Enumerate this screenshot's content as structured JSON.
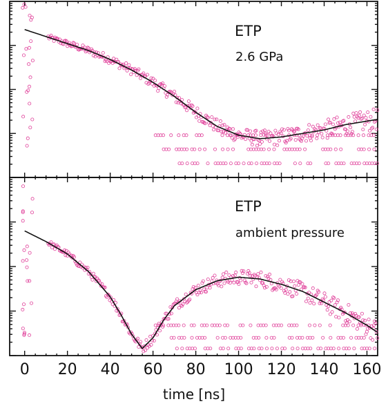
{
  "chart_data": [
    {
      "type": "scatter",
      "title": "",
      "xlabel": "",
      "ylabel": "",
      "xlim": [
        -7,
        165
      ],
      "ylim": [
        0,
        1
      ],
      "grid": false,
      "log_y": true,
      "annotations": [
        "ETP",
        "2.6 GPa"
      ],
      "series": [
        {
          "kind": "fit",
          "x": [
            0,
            10,
            20,
            30,
            40,
            50,
            60,
            70,
            80,
            90,
            100,
            110,
            120,
            130,
            140,
            150,
            160,
            165
          ],
          "y": [
            0.84,
            0.8,
            0.76,
            0.72,
            0.67,
            0.61,
            0.54,
            0.46,
            0.37,
            0.29,
            0.24,
            0.22,
            0.23,
            0.25,
            0.27,
            0.3,
            0.32,
            0.33
          ]
        }
      ]
    },
    {
      "type": "scatter",
      "title": "",
      "xlabel": "time [ns]",
      "ylabel": "",
      "xlim": [
        -7,
        165
      ],
      "ylim": [
        0,
        1
      ],
      "grid": false,
      "log_y": true,
      "annotations": [
        "ETP",
        "ambient pressure"
      ],
      "x_ticks": [
        0,
        20,
        40,
        60,
        80,
        100,
        120,
        140,
        160
      ],
      "series": [
        {
          "kind": "fit",
          "x": [
            0,
            10,
            20,
            30,
            40,
            45,
            50,
            55,
            60,
            65,
            70,
            80,
            90,
            100,
            110,
            120,
            130,
            140,
            150,
            160,
            165
          ],
          "y": [
            0.7,
            0.64,
            0.57,
            0.47,
            0.33,
            0.23,
            0.12,
            0.04,
            0.1,
            0.2,
            0.28,
            0.37,
            0.42,
            0.44,
            0.43,
            0.4,
            0.36,
            0.3,
            0.24,
            0.17,
            0.13
          ]
        }
      ]
    }
  ]
}
